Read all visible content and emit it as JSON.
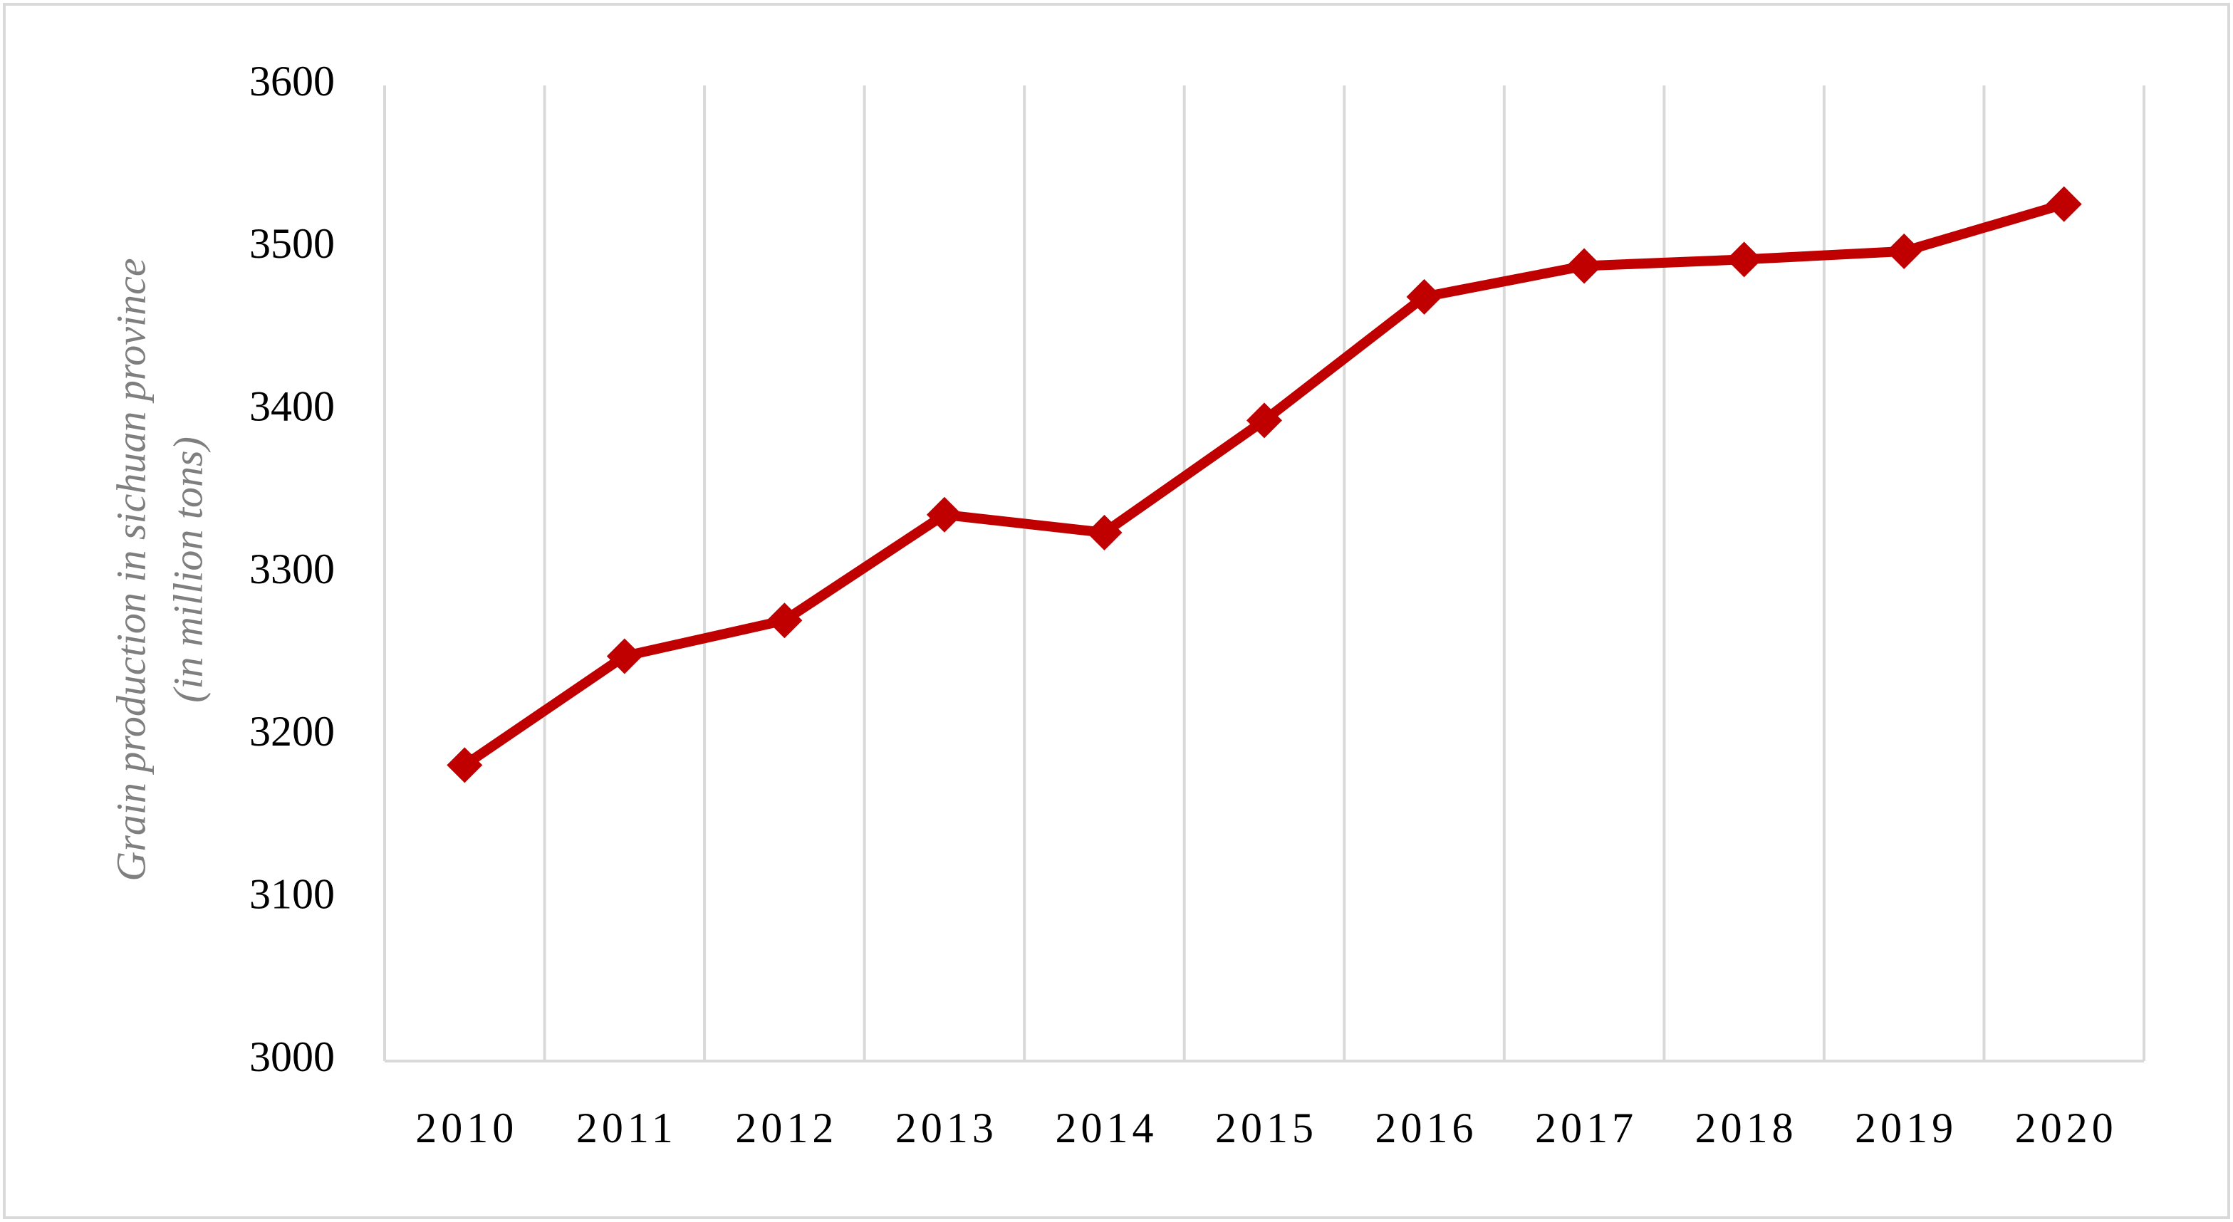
{
  "chart_data": {
    "type": "line",
    "ylabel": [
      "Grain production in sichuan province",
      "(in million tons)"
    ],
    "categories": [
      "2010",
      "2011",
      "2012",
      "2013",
      "2014",
      "2015",
      "2016",
      "2017",
      "2018",
      "2019",
      "2020"
    ],
    "values": [
      3182,
      3249,
      3271,
      3336,
      3325,
      3394,
      3470,
      3489,
      3493,
      3498,
      3527
    ],
    "color": "#c00000",
    "ylim": [
      3000,
      3600
    ],
    "yticks": [
      3000,
      3100,
      3200,
      3300,
      3400,
      3500,
      3600
    ],
    "grid": true
  }
}
